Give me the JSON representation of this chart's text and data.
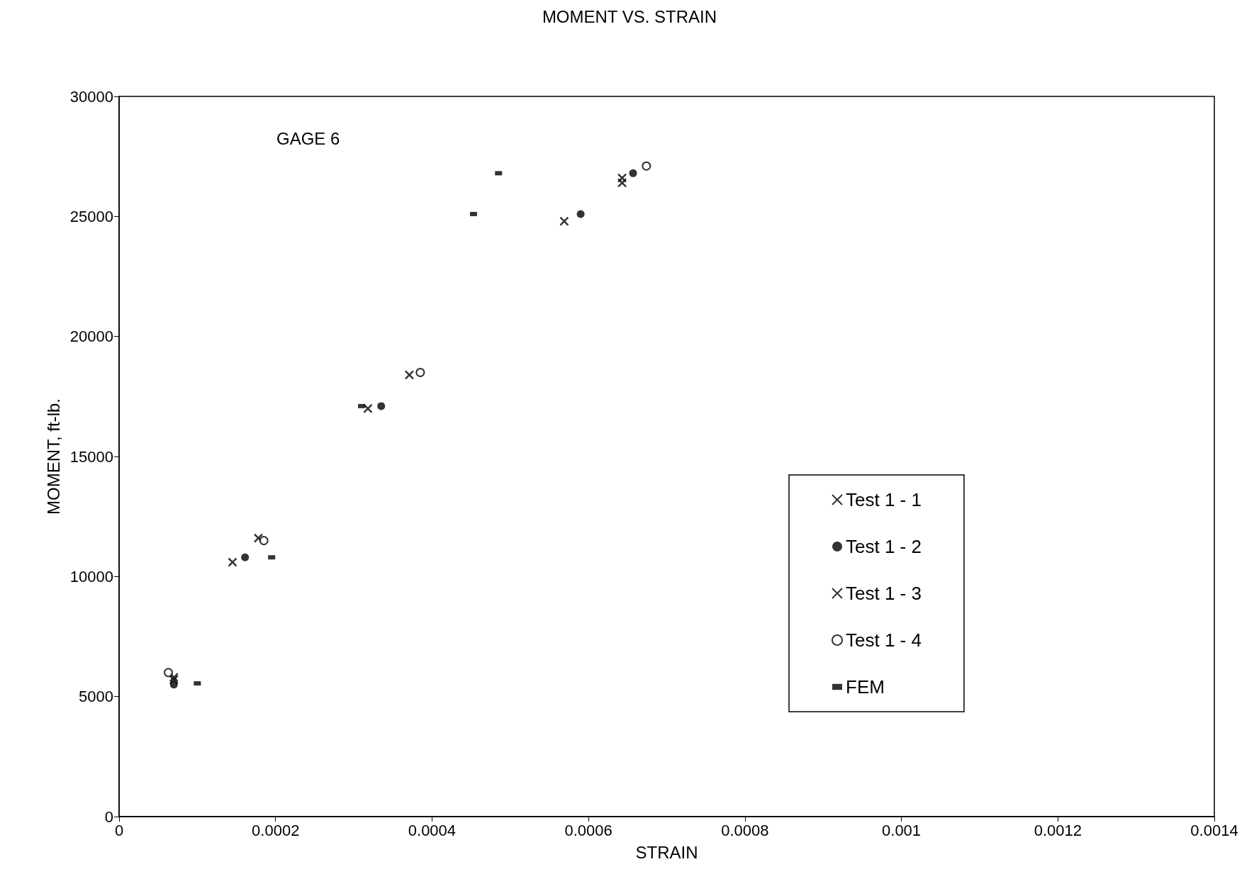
{
  "chart_data": {
    "type": "scatter",
    "title": "MOMENT VS. STRAIN",
    "xlabel": "STRAIN",
    "ylabel": "MOMENT, ft-lb.",
    "annotations": [
      "GAGE 6"
    ],
    "series": [
      {
        "name": "Test 1 - 1",
        "color": "#000000",
        "marker": "cross",
        "x": [
          7e-05,
          0.000178,
          0.000371,
          0.000643
        ],
        "values": [
          5700,
          11600,
          18400,
          26600
        ]
      },
      {
        "name": "Test 1 - 2",
        "color": "#000000",
        "marker": "circle",
        "x": [
          7e-05,
          0.000161,
          0.000335,
          0.00059,
          0.000657
        ],
        "values": [
          5500,
          10800,
          17100,
          25100,
          26800
        ]
      },
      {
        "name": "Test 1 - 3",
        "color": "#000000",
        "marker": "cross",
        "x": [
          7e-05,
          0.000145,
          0.000318,
          0.000569,
          0.000643
        ],
        "values": [
          5800,
          10600,
          17000,
          24800,
          26400
        ]
      },
      {
        "name": "Test 1 - 4",
        "color": "#000000",
        "marker": "circle",
        "x": [
          6.3e-05,
          0.000185,
          0.000385,
          0.000674
        ],
        "values": [
          6000,
          11500,
          18500,
          27100
        ]
      },
      {
        "name": "FEM",
        "color": "#000000",
        "marker": "square",
        "x": [
          0.0001,
          0.000195,
          0.00031,
          0.000453,
          0.000485
        ],
        "values": [
          5550,
          10800,
          17100,
          25100,
          26800
        ]
      }
    ],
    "xlim": [
      0,
      0.0014
    ],
    "xticks": [
      0,
      0.0002,
      0.0004,
      0.0006,
      0.0008,
      0.001,
      0.0012,
      0.0014
    ],
    "ylim": [
      0,
      30000
    ],
    "yticks": [
      0,
      5000,
      10000,
      15000,
      20000,
      25000,
      30000
    ],
    "grid": false,
    "legend": "right"
  }
}
